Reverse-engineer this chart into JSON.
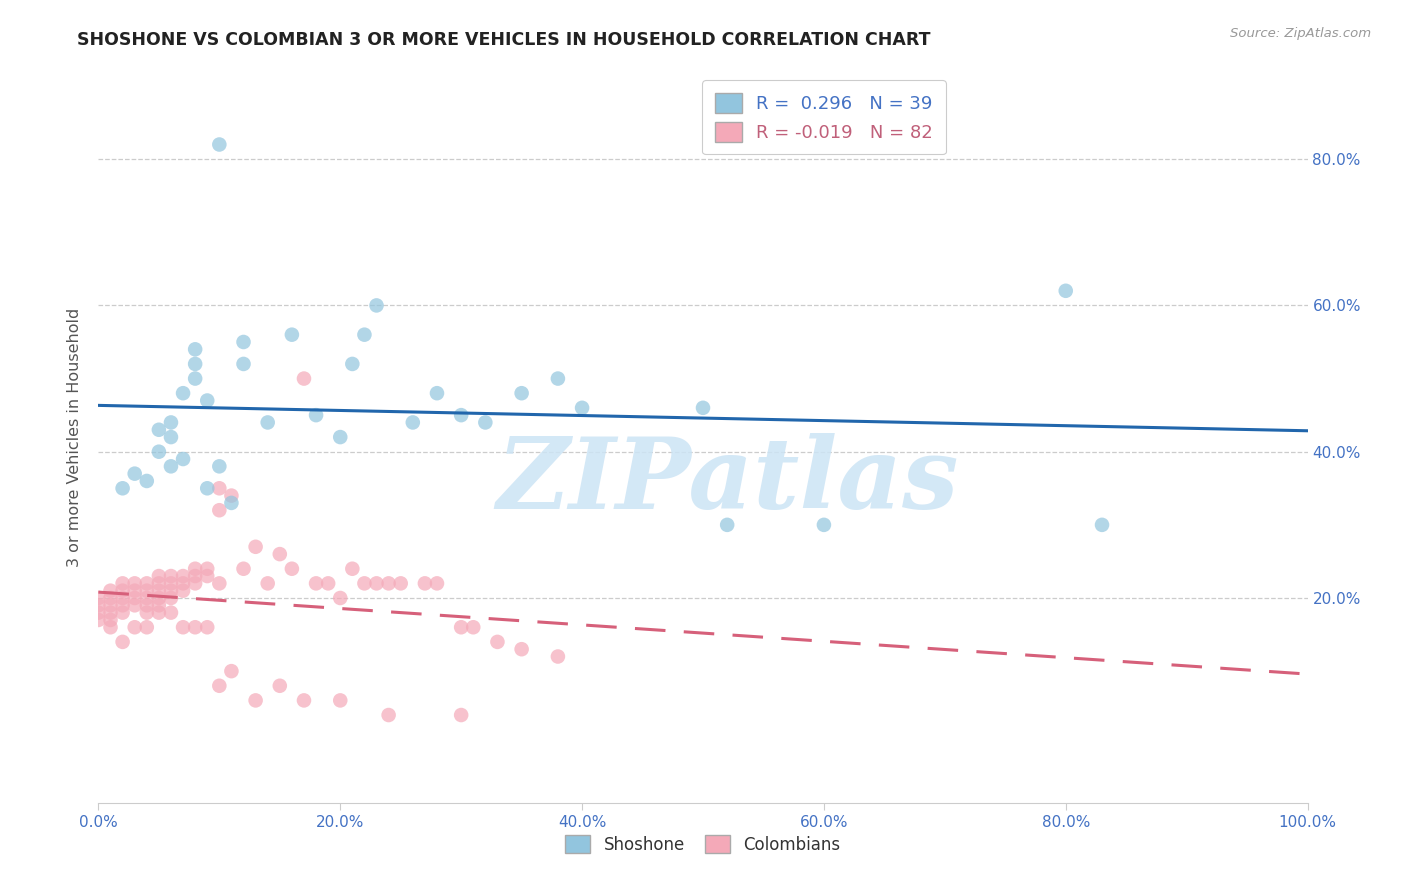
{
  "title": "SHOSHONE VS COLOMBIAN 3 OR MORE VEHICLES IN HOUSEHOLD CORRELATION CHART",
  "source": "Source: ZipAtlas.com",
  "ylabel": "3 or more Vehicles in Household",
  "shoshone_R": 0.296,
  "shoshone_N": 39,
  "colombian_R": -0.019,
  "colombian_N": 82,
  "shoshone_color": "#92c5de",
  "colombian_color": "#f4a9b8",
  "trend_shoshone_color": "#2166ac",
  "trend_colombian_color": "#d6607a",
  "watermark_text": "ZIPatlas",
  "watermark_color": "#cce4f5",
  "shoshone_scatter_x": [
    2,
    3,
    4,
    5,
    5,
    6,
    6,
    6,
    7,
    7,
    8,
    8,
    8,
    9,
    9,
    10,
    11,
    12,
    12,
    14,
    16,
    18,
    20,
    21,
    22,
    23,
    26,
    28,
    30,
    32,
    35,
    38,
    40,
    50,
    52,
    60,
    80,
    83,
    10
  ],
  "shoshone_scatter_y": [
    35,
    37,
    36,
    40,
    43,
    38,
    42,
    44,
    39,
    48,
    50,
    52,
    54,
    35,
    47,
    38,
    33,
    52,
    55,
    44,
    56,
    45,
    42,
    52,
    56,
    60,
    44,
    48,
    45,
    44,
    48,
    50,
    46,
    46,
    30,
    30,
    62,
    30,
    82
  ],
  "colombian_scatter_x": [
    0,
    0,
    0,
    0,
    1,
    1,
    1,
    1,
    1,
    1,
    2,
    2,
    2,
    2,
    2,
    3,
    3,
    3,
    3,
    4,
    4,
    4,
    4,
    4,
    5,
    5,
    5,
    5,
    5,
    6,
    6,
    6,
    6,
    7,
    7,
    7,
    8,
    8,
    8,
    9,
    9,
    10,
    10,
    10,
    11,
    12,
    13,
    14,
    15,
    16,
    17,
    18,
    19,
    20,
    21,
    22,
    23,
    24,
    25,
    27,
    28,
    30,
    31,
    33,
    35,
    38,
    2,
    3,
    4,
    5,
    6,
    7,
    8,
    9,
    10,
    11,
    13,
    15,
    17,
    20,
    24,
    30
  ],
  "colombian_scatter_y": [
    20,
    19,
    18,
    17,
    21,
    20,
    19,
    18,
    17,
    16,
    22,
    21,
    20,
    19,
    18,
    22,
    21,
    20,
    19,
    22,
    21,
    20,
    19,
    18,
    23,
    22,
    21,
    20,
    19,
    23,
    22,
    21,
    20,
    23,
    22,
    21,
    24,
    23,
    22,
    24,
    23,
    35,
    32,
    22,
    34,
    24,
    27,
    22,
    26,
    24,
    50,
    22,
    22,
    20,
    24,
    22,
    22,
    22,
    22,
    22,
    22,
    16,
    16,
    14,
    13,
    12,
    14,
    16,
    16,
    18,
    18,
    16,
    16,
    16,
    8,
    10,
    6,
    8,
    6,
    6,
    4,
    4
  ],
  "xlim": [
    0,
    100
  ],
  "ylim": [
    -8,
    92
  ],
  "xticks": [
    0,
    20,
    40,
    60,
    80,
    100
  ],
  "yticks_right": [
    20,
    40,
    60,
    80
  ],
  "grid_lines": [
    20,
    40,
    60,
    80
  ],
  "top_grid": 80
}
